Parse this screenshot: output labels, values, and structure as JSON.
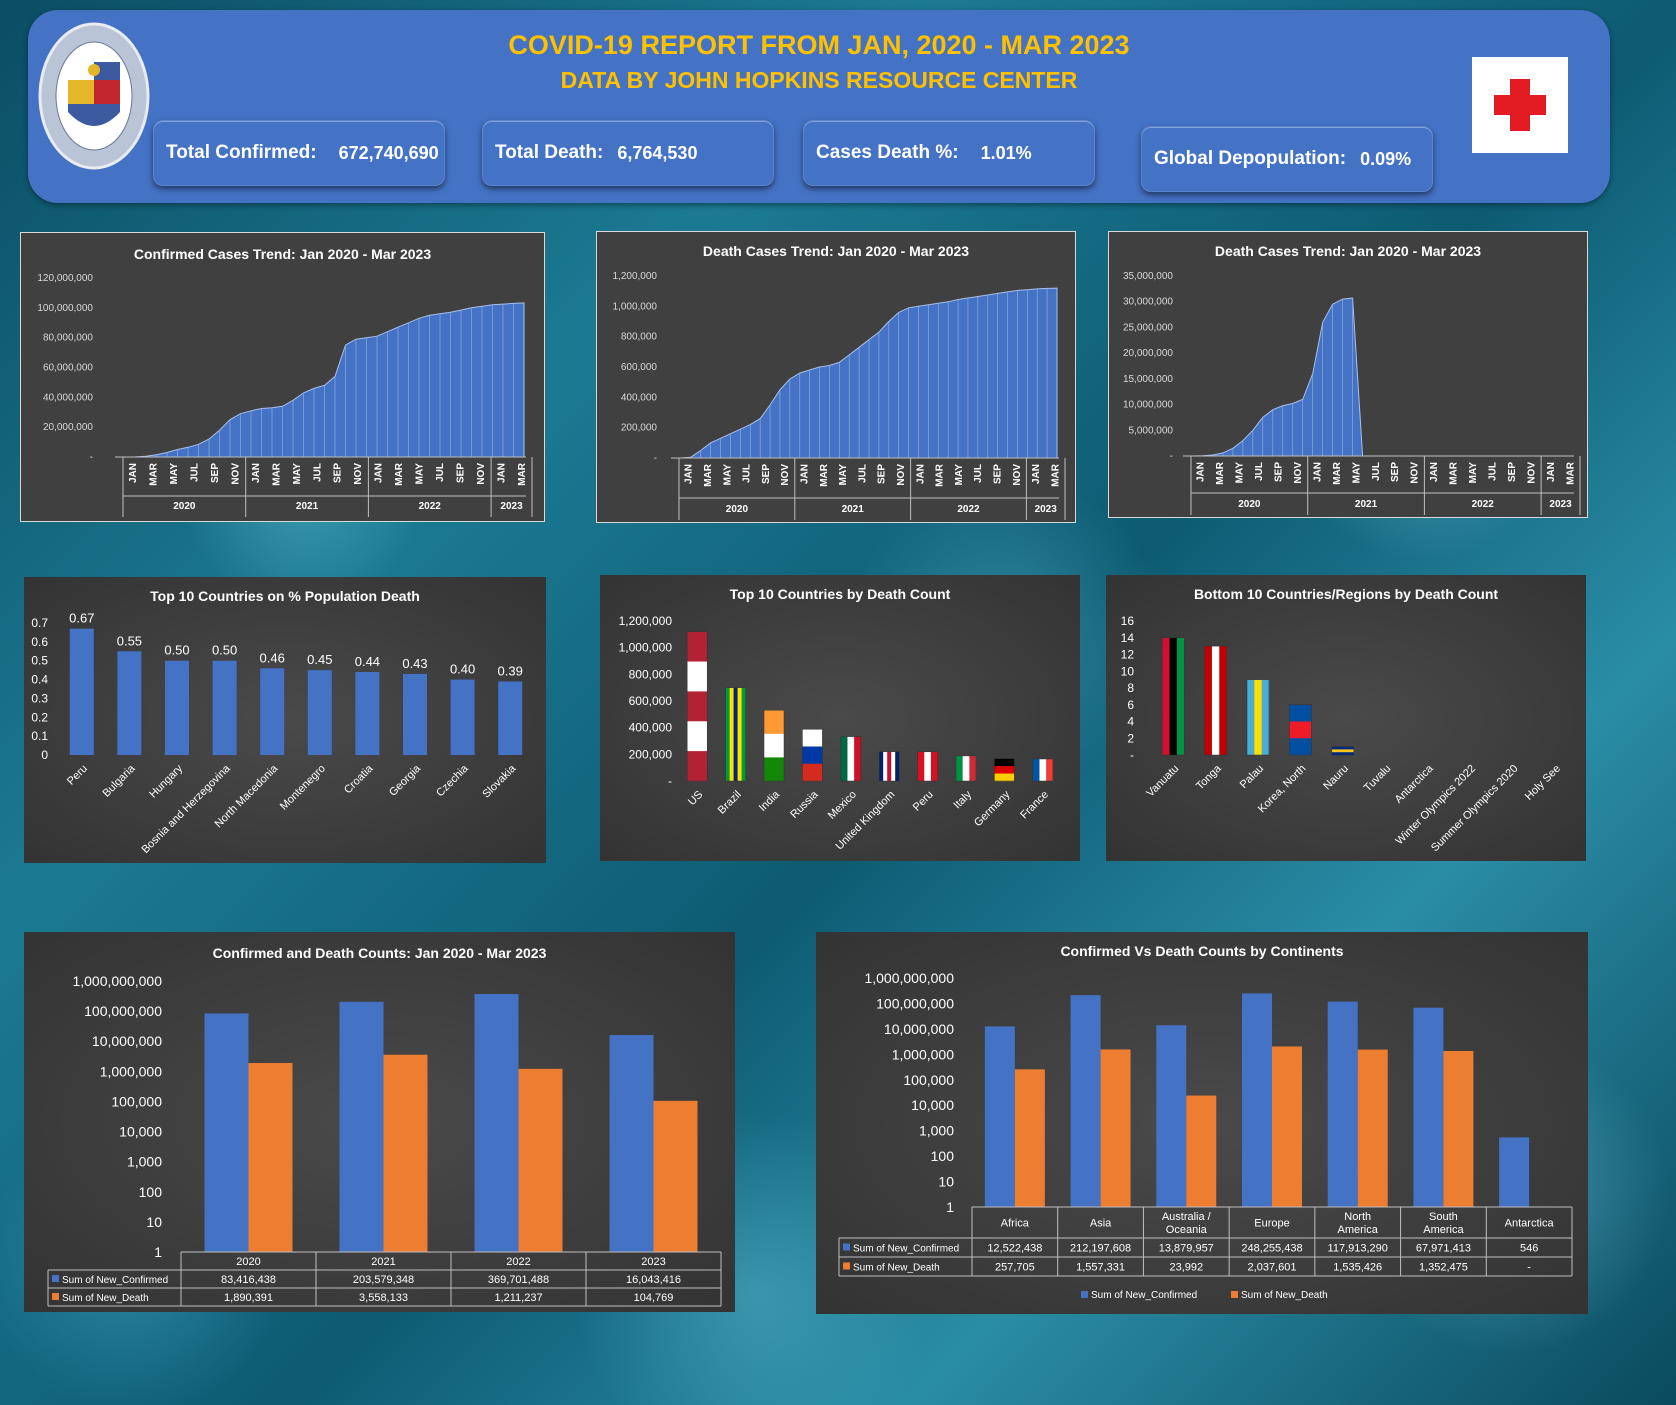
{
  "header": {
    "title": "COVID-19 REPORT FROM JAN, 2020 - MAR 2023",
    "subtitle": "DATA BY JOHN HOPKINS RESOURCE CENTER",
    "seal_text": "THE JOHNS HOPKINS UNIVERSITY BALTIMORE 1876"
  },
  "kpis": [
    {
      "label": "Total Confirmed:",
      "value": "672,740,690"
    },
    {
      "label": "Total Death:",
      "value": "6,764,530"
    },
    {
      "label": "Cases Death %:",
      "value": "1.01%"
    },
    {
      "label": "Global Depopulation:",
      "value": "0.09%"
    }
  ],
  "colors": {
    "header": "#4472c4",
    "title": "#ffc000",
    "confirmed": "#4472c4",
    "death": "#ed7d31",
    "panel": "#404040",
    "cross": "#e31c24"
  },
  "chart_data": [
    {
      "type": "area",
      "title": "Confirmed Cases Trend: Jan 2020 - Mar 2023",
      "ylim": [
        0,
        120000000
      ],
      "yticks": [
        "120,000,000",
        "100,000,000",
        "80,000,000",
        "60,000,000",
        "40,000,000",
        "20,000,000",
        "-"
      ],
      "month_labels": [
        "JAN",
        "MAR",
        "MAY",
        "JUL",
        "SEP",
        "NOV",
        "JAN",
        "MAR",
        "MAY",
        "JUL",
        "SEP",
        "NOV",
        "JAN",
        "MAR",
        "MAY",
        "JUL",
        "SEP",
        "NOV",
        "JAN",
        "MAR"
      ],
      "years": [
        "2020",
        "2021",
        "2022",
        "2023"
      ],
      "values": [
        0,
        100000,
        500000,
        1500000,
        3000000,
        5000000,
        6500000,
        8500000,
        12000000,
        18000000,
        25000000,
        29000000,
        31000000,
        32500000,
        33000000,
        34000000,
        38000000,
        43000000,
        46000000,
        48000000,
        54000000,
        75000000,
        79000000,
        80000000,
        81000000,
        84000000,
        87000000,
        90000000,
        93000000,
        95000000,
        96000000,
        97000000,
        98500000,
        100000000,
        101000000,
        102000000,
        102500000,
        103000000,
        103300000
      ]
    },
    {
      "type": "area",
      "title": "Death Cases Trend: Jan 2020 - Mar 2023",
      "ylim": [
        0,
        1200000
      ],
      "yticks": [
        "1,200,000",
        "1,000,000",
        "800,000",
        "600,000",
        "400,000",
        "200,000",
        "-"
      ],
      "month_labels": [
        "JAN",
        "MAR",
        "MAY",
        "JUL",
        "SEP",
        "NOV",
        "JAN",
        "MAR",
        "MAY",
        "JUL",
        "SEP",
        "NOV",
        "JAN",
        "MAR",
        "MAY",
        "JUL",
        "SEP",
        "NOV",
        "JAN",
        "MAR"
      ],
      "years": [
        "2020",
        "2021",
        "2022",
        "2023"
      ],
      "values": [
        0,
        5000,
        50000,
        100000,
        130000,
        160000,
        190000,
        220000,
        260000,
        350000,
        450000,
        520000,
        560000,
        580000,
        600000,
        610000,
        630000,
        680000,
        730000,
        780000,
        830000,
        900000,
        960000,
        990000,
        1000000,
        1010000,
        1020000,
        1030000,
        1045000,
        1055000,
        1065000,
        1075000,
        1085000,
        1095000,
        1105000,
        1110000,
        1115000,
        1118000,
        1120000
      ]
    },
    {
      "type": "area",
      "title": "Death Cases Trend: Jan 2020 - Mar 2023",
      "ylim": [
        0,
        35000000
      ],
      "yticks": [
        "35,000,000",
        "30,000,000",
        "25,000,000",
        "20,000,000",
        "15,000,000",
        "10,000,000",
        "5,000,000",
        "-"
      ],
      "month_labels": [
        "JAN",
        "MAR",
        "MAY",
        "JUL",
        "SEP",
        "NOV",
        "JAN",
        "MAR",
        "MAY",
        "JUL",
        "SEP",
        "NOV",
        "JAN",
        "MAR",
        "MAY",
        "JUL",
        "SEP",
        "NOV",
        "JAN",
        "MAR"
      ],
      "years": [
        "2020",
        "2021",
        "2022",
        "2023"
      ],
      "values": [
        0,
        50000,
        200000,
        600000,
        1500000,
        3000000,
        5000000,
        7500000,
        9000000,
        9800000,
        10200000,
        11000000,
        16000000,
        26000000,
        29500000,
        30500000,
        30700000,
        0,
        0,
        0,
        0,
        0,
        0,
        0,
        0,
        0,
        0,
        0,
        0,
        0,
        0,
        0,
        0,
        0,
        0,
        0,
        0,
        0,
        0
      ]
    },
    {
      "type": "bar",
      "title": "Top 10 Countries on % Population Death",
      "ylim": [
        0,
        0.7
      ],
      "yticks": [
        "0.7",
        "0.6",
        "0.5",
        "0.4",
        "0.3",
        "0.2",
        "0.1",
        "0"
      ],
      "categories": [
        "Peru",
        "Bulgaria",
        "Hungary",
        "Bosnia and Herzegovina",
        "North Macedonia",
        "Montenegro",
        "Croatia",
        "Georgia",
        "Czechia",
        "Slovakia"
      ],
      "values": [
        0.67,
        0.55,
        0.5,
        0.5,
        0.46,
        0.45,
        0.44,
        0.43,
        0.4,
        0.39
      ],
      "labels": [
        "0.67",
        "0.55",
        "0.50",
        "0.50",
        "0.46",
        "0.45",
        "0.44",
        "0.43",
        "0.40",
        "0.39"
      ]
    },
    {
      "type": "bar",
      "title": "Top 10 Countries by Death Count",
      "ylim": [
        0,
        1200000
      ],
      "yticks": [
        "1,200,000",
        "1,000,000",
        "800,000",
        "600,000",
        "400,000",
        "200,000",
        "-"
      ],
      "categories": [
        "US",
        "Brazil",
        "India",
        "Russia",
        "Mexico",
        "United Kingdom",
        "Peru",
        "Italy",
        "Germany",
        "France"
      ],
      "values": [
        1120000,
        700000,
        531000,
        388000,
        333000,
        220000,
        219000,
        188000,
        168000,
        165000
      ]
    },
    {
      "type": "bar",
      "title": "Bottom 10 Countries/Regions by Death Count",
      "ylim": [
        0,
        16
      ],
      "yticks": [
        "16",
        "14",
        "12",
        "10",
        "8",
        "6",
        "4",
        "2",
        "-"
      ],
      "categories": [
        "Vanuatu",
        "Tonga",
        "Palau",
        "Korea, North",
        "Nauru",
        "Tuvalu",
        "Antarctica",
        "Winter Olympics 2022",
        "Summer Olympics 2020",
        "Holy See"
      ],
      "values": [
        14,
        13,
        9,
        6,
        1,
        0,
        0,
        0,
        0,
        0
      ]
    },
    {
      "type": "bar",
      "title": "Confirmed and Death Counts: Jan 2020 - Mar 2023",
      "log_scale": true,
      "yticks": [
        "1,000,000,000",
        "100,000,000",
        "10,000,000",
        "1,000,000",
        "100,000",
        "10,000",
        "1,000",
        "100",
        "10",
        "1"
      ],
      "categories": [
        "2020",
        "2021",
        "2022",
        "2023"
      ],
      "series": [
        {
          "name": "Sum of New_Confirmed",
          "values": [
            83416438,
            203579348,
            369701488,
            16043416
          ],
          "labels": [
            "83,416,438",
            "203,579,348",
            "369,701,488",
            "16,043,416"
          ]
        },
        {
          "name": "Sum of New_Death",
          "values": [
            1890391,
            3558133,
            1211237,
            104769
          ],
          "labels": [
            "1,890,391",
            "3,558,133",
            "1,211,237",
            "104,769"
          ]
        }
      ]
    },
    {
      "type": "bar",
      "title": "Confirmed Vs Death Counts by Continents",
      "log_scale": true,
      "yticks": [
        "1,000,000,000",
        "100,000,000",
        "10,000,000",
        "1,000,000",
        "100,000",
        "10,000",
        "1,000",
        "100",
        "10",
        "1"
      ],
      "categories": [
        "Africa",
        "Asia",
        "Australia / Oceania",
        "Europe",
        "North America",
        "South America",
        "Antarctica"
      ],
      "series": [
        {
          "name": "Sum of New_Confirmed",
          "values": [
            12522438,
            212197608,
            13879957,
            248255438,
            117913290,
            67971413,
            546
          ],
          "labels": [
            "12,522,438",
            "212,197,608",
            "13,879,957",
            "248,255,438",
            "117,913,290",
            "67,971,413",
            "546"
          ]
        },
        {
          "name": "Sum of New_Death",
          "values": [
            257705,
            1557331,
            23992,
            2037601,
            1535426,
            1352475,
            0
          ],
          "labels": [
            "257,705",
            "1,557,331",
            "23,992",
            "2,037,601",
            "1,535,426",
            "1,352,475",
            "-"
          ]
        }
      ]
    }
  ]
}
